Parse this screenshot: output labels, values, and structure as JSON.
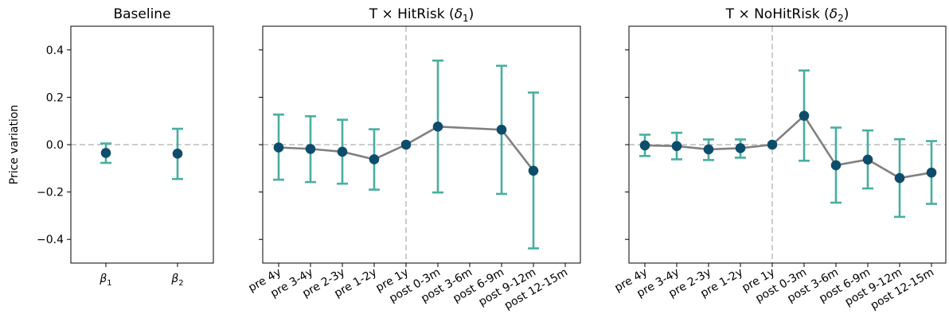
{
  "chart_data": [
    {
      "type": "errorbar",
      "title": "Baseline",
      "ylabel": "Price variation",
      "ylim": [
        -0.5,
        0.5
      ],
      "yticks": [
        -0.4,
        -0.2,
        0.0,
        0.2,
        0.4
      ],
      "ytick_labels": [
        "−0.4",
        "−0.2",
        "0.0",
        "0.2",
        "0.4"
      ],
      "categories": [
        "β1",
        "β2"
      ],
      "category_labels": [
        {
          "base": "β",
          "sub": "1"
        },
        {
          "base": "β",
          "sub": "2"
        }
      ],
      "values": [
        -0.035,
        -0.038
      ],
      "ci_low": [
        -0.077,
        -0.145
      ],
      "ci_high": [
        0.005,
        0.067
      ],
      "connected": false,
      "reference_lines": {
        "horizontal_at": 0.0
      },
      "grid": false
    },
    {
      "type": "errorbar",
      "title": "T × HitRisk (δ1)",
      "title_parts": {
        "prefix": "T × HitRisk (",
        "symbol": "δ",
        "sub": "1",
        "suffix": ")"
      },
      "ylim": [
        -0.5,
        0.5
      ],
      "categories": [
        "pre 4y",
        "pre 3-4y",
        "pre 2-3y",
        "pre 1-2y",
        "pre 1y",
        "post 0-3m",
        "post 3-6m",
        "post 6-9m",
        "post 9-12m",
        "post 12-15m"
      ],
      "values": [
        -0.012,
        -0.018,
        -0.03,
        -0.062,
        0.0,
        0.076,
        null,
        0.063,
        -0.11,
        null
      ],
      "ci_low": [
        -0.148,
        -0.158,
        -0.165,
        -0.19,
        null,
        -0.202,
        null,
        -0.208,
        -0.438,
        null
      ],
      "ci_high": [
        0.127,
        0.12,
        0.105,
        0.065,
        null,
        0.355,
        null,
        0.333,
        0.22,
        null
      ],
      "connected": true,
      "reference_lines": {
        "horizontal_at": 0.0,
        "vertical_at": "pre 1y"
      },
      "grid": false
    },
    {
      "type": "errorbar",
      "title": "T × NoHitRisk (δ2)",
      "title_parts": {
        "prefix": "T × NoHitRisk (",
        "symbol": "δ",
        "sub": "2",
        "suffix": ")"
      },
      "ylim": [
        -0.5,
        0.5
      ],
      "categories": [
        "pre 4y",
        "pre 3-4y",
        "pre 2-3y",
        "pre 1-2y",
        "pre 1y",
        "post 0-3m",
        "post 3-6m",
        "post 6-9m",
        "post 9-12m",
        "post 12-15m"
      ],
      "values": [
        -0.003,
        -0.006,
        -0.02,
        -0.015,
        0.0,
        0.122,
        -0.087,
        -0.063,
        -0.141,
        -0.118
      ],
      "ci_low": [
        -0.048,
        -0.062,
        -0.065,
        -0.055,
        null,
        -0.068,
        -0.245,
        -0.185,
        -0.305,
        -0.25
      ],
      "ci_high": [
        0.042,
        0.05,
        0.022,
        0.022,
        null,
        0.313,
        0.072,
        0.06,
        0.023,
        0.015
      ],
      "connected": true,
      "reference_lines": {
        "horizontal_at": 0.0,
        "vertical_at": "pre 1y"
      },
      "grid": false
    }
  ],
  "colors": {
    "marker": "#0d4d6b",
    "errorbar": "#48aea0",
    "line": "#808080",
    "reference": "#cccccc",
    "axes": "#000000"
  }
}
